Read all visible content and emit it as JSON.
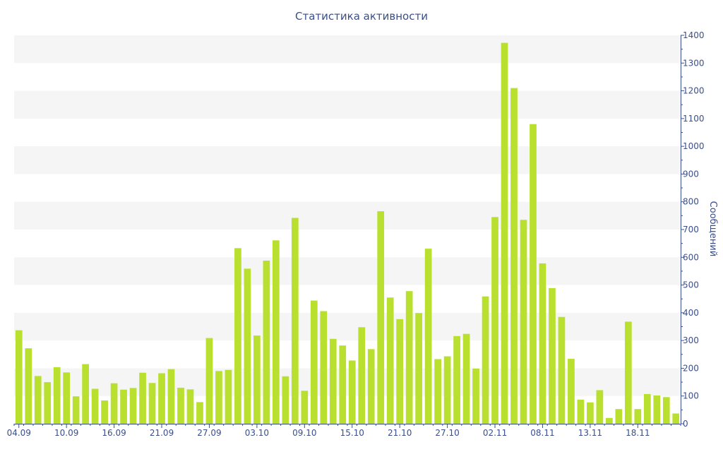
{
  "chart_data": {
    "type": "bar",
    "title": "Статистика активности",
    "ylabel": "Сообщений",
    "xlabel": "",
    "ylim": [
      0,
      1400
    ],
    "yticks": [
      0,
      100,
      200,
      300,
      400,
      500,
      600,
      700,
      800,
      900,
      1000,
      1100,
      1200,
      1300,
      1400
    ],
    "y_axis_position": "right",
    "grid": "alternating horizontal bands",
    "colors": {
      "bar": "#b9e02e",
      "axis": "#3a4e8c",
      "band": "#f5f5f5",
      "title": "#3a4e8c"
    },
    "x_tick_labels": [
      {
        "index": 0,
        "label": "04.09"
      },
      {
        "index": 5,
        "label": "10.09"
      },
      {
        "index": 10,
        "label": "16.09"
      },
      {
        "index": 15,
        "label": "21.09"
      },
      {
        "index": 20,
        "label": "27.09"
      },
      {
        "index": 25,
        "label": "03.10"
      },
      {
        "index": 30,
        "label": "09.10"
      },
      {
        "index": 35,
        "label": "15.10"
      },
      {
        "index": 40,
        "label": "21.10"
      },
      {
        "index": 45,
        "label": "27.10"
      },
      {
        "index": 50,
        "label": "02.11"
      },
      {
        "index": 55,
        "label": "08.11"
      },
      {
        "index": 60,
        "label": "13.11"
      },
      {
        "index": 65,
        "label": "18.11"
      }
    ],
    "values": [
      337,
      272,
      172,
      150,
      204,
      185,
      99,
      215,
      126,
      84,
      146,
      123,
      129,
      184,
      147,
      182,
      197,
      130,
      124,
      78,
      309,
      190,
      194,
      633,
      559,
      318,
      588,
      661,
      171,
      742,
      119,
      444,
      406,
      306,
      282,
      228,
      348,
      269,
      766,
      455,
      377,
      478,
      399,
      631,
      233,
      243,
      316,
      324,
      199,
      459,
      745,
      1373,
      1210,
      735,
      1080,
      578,
      489,
      385,
      234,
      87,
      77,
      121,
      21,
      53,
      368,
      53,
      107,
      102,
      96,
      37
    ]
  }
}
